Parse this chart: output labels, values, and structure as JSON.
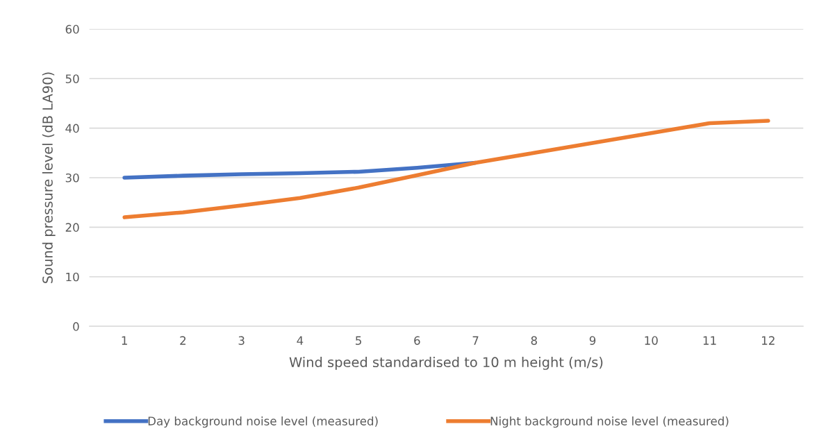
{
  "chart_data": {
    "type": "line",
    "xlabel": "Wind speed standardised to 10 m height (m/s)",
    "ylabel": "Sound pressure level (dB LA90)",
    "categories": [
      "1",
      "2",
      "3",
      "4",
      "5",
      "6",
      "7",
      "8",
      "9",
      "10",
      "11",
      "12"
    ],
    "series": [
      {
        "name": "Day background noise level (measured)",
        "color": "#4472c4",
        "values": [
          30,
          30.4,
          30.7,
          30.9,
          31.2,
          32,
          33,
          null,
          null,
          null,
          null,
          null
        ]
      },
      {
        "name": "Night background noise level (measured)",
        "color": "#ed7d31",
        "values": [
          22,
          23,
          24.4,
          25.9,
          28,
          30.5,
          33,
          35,
          37,
          39,
          41,
          41.5
        ]
      }
    ],
    "ylim": [
      0,
      60
    ],
    "yticks": [
      0,
      10,
      20,
      30,
      40,
      50,
      60
    ],
    "grid": "y",
    "legend": "bottom",
    "marker": "none",
    "line_style": "solid"
  }
}
